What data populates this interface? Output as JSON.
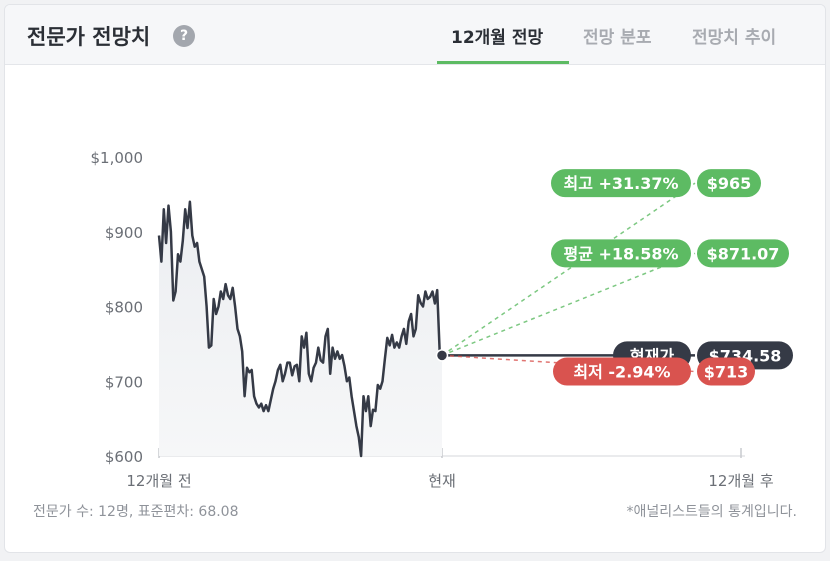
{
  "header": {
    "title": "전문가 전망치",
    "help_icon": "?",
    "tabs": [
      {
        "label": "12개월 전망",
        "active": true
      },
      {
        "label": "전망 분포",
        "active": false
      },
      {
        "label": "전망치 추이",
        "active": false
      }
    ]
  },
  "footer": {
    "left": "전문가 수: 12명, 표준편차: 68.08",
    "right": "*애널리스트들의 통계입니다."
  },
  "colors": {
    "line": "#353a46",
    "high": "#5dbb63",
    "avg": "#5dbb63",
    "current": "#353a46",
    "low": "#d9534f"
  },
  "chart_data": {
    "type": "line",
    "ylim": [
      600,
      1000
    ],
    "y_ticks": [
      "$1,000",
      "$900",
      "$800",
      "$700",
      "$600"
    ],
    "y_tick_values": [
      1000,
      900,
      800,
      700,
      600
    ],
    "x_tick_labels": [
      "12개월 전",
      "현재",
      "12개월 후"
    ],
    "series": [
      {
        "values": [
          895,
          860,
          930,
          885,
          935,
          900,
          808,
          820,
          870,
          860,
          888,
          930,
          905,
          940,
          895,
          880,
          885,
          860,
          850,
          840,
          800,
          745,
          748,
          810,
          790,
          800,
          820,
          810,
          830,
          815,
          810,
          825,
          800,
          770,
          760,
          740,
          680,
          718,
          712,
          715,
          680,
          670,
          665,
          670,
          660,
          668,
          660,
          675,
          690,
          700,
          715,
          722,
          700,
          710,
          725,
          725,
          708,
          720,
          722,
          700,
          760,
          745,
          765,
          710,
          700,
          718,
          725,
          745,
          728,
          725,
          760,
          770,
          710,
          745,
          730,
          740,
          730,
          735,
          720,
          700,
          705,
          680,
          660,
          640,
          625,
          600,
          680,
          660,
          680,
          640,
          662,
          660,
          695,
          690,
          700,
          730,
          758,
          748,
          762,
          745,
          752,
          745,
          760,
          770,
          750,
          780,
          790,
          760,
          770,
          815,
          805,
          800,
          820,
          810,
          813,
          820,
          804,
          822,
          742,
          734.58
        ]
      }
    ],
    "projections": [
      {
        "key": "high",
        "label": "최고 +31.37%",
        "value": 965,
        "value_label": "$965"
      },
      {
        "key": "avg",
        "label": "평균 +18.58%",
        "value": 871.07,
        "value_label": "$871.07"
      },
      {
        "key": "current",
        "label": "현재가",
        "value": 734.58,
        "value_label": "$734.58"
      },
      {
        "key": "low",
        "label": "최저 -2.94%",
        "value": 713,
        "value_label": "$713"
      }
    ]
  }
}
